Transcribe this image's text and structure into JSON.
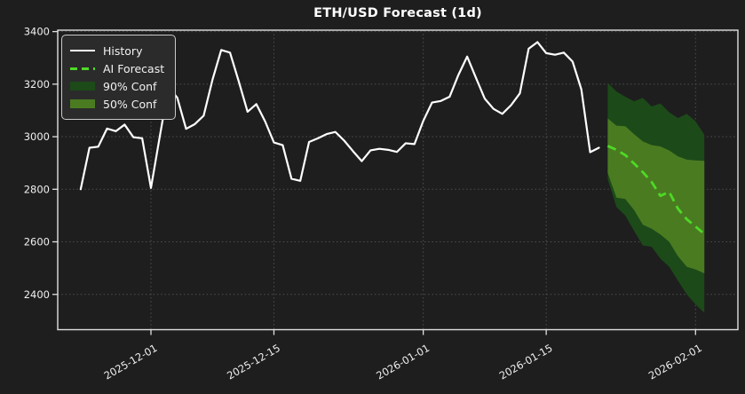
{
  "colors": {
    "background": "#1e1e1e",
    "text": "#f0f0f0",
    "grid": "#4f4f4f",
    "spine": "#e0e0e0",
    "history": "#ffffff",
    "forecast": "#4ed926",
    "band90": "#1c4a19",
    "band50": "#4a7b21",
    "legend_bg": "#2b2b2b",
    "legend_border": "#c9c9c9"
  },
  "legend": {
    "items": [
      {
        "label": "History",
        "swatch": "line",
        "color": "#ffffff"
      },
      {
        "label": "AI Forecast",
        "swatch": "dashed",
        "color": "#4ed926"
      },
      {
        "label": "90% Conf",
        "swatch": "patch",
        "color": "#1c4a19"
      },
      {
        "label": "50% Conf",
        "swatch": "patch",
        "color": "#4a7b21"
      }
    ]
  },
  "chart_data": {
    "type": "line",
    "title": "ETH/USD Forecast (1d)",
    "xlabel": "",
    "ylabel": "",
    "grid": true,
    "legend_position": "upper-left",
    "ylim": [
      2262,
      3405
    ],
    "x_ticks": [
      "2025-12-01",
      "2025-12-15",
      "2026-01-01",
      "2026-01-15",
      "2026-02-01"
    ],
    "y_ticks": [
      2400,
      2600,
      2800,
      3000,
      3200,
      3400
    ],
    "series": {
      "history": {
        "name": "History",
        "start_date": "2025-11-23",
        "interval_days": 1,
        "values": [
          2800,
          2958,
          2962,
          3031,
          3021,
          3046,
          2998,
          2994,
          2805,
          3000,
          3190,
          3148,
          3030,
          3048,
          3080,
          3216,
          3330,
          3320,
          3210,
          3095,
          3124,
          3058,
          2978,
          2968,
          2840,
          2832,
          2980,
          2994,
          3010,
          3018,
          2985,
          2945,
          2907,
          2948,
          2954,
          2950,
          2942,
          2975,
          2972,
          3060,
          3130,
          3136,
          3152,
          3235,
          3305,
          3224,
          3145,
          3106,
          3087,
          3120,
          3165,
          3335,
          3360,
          3318,
          3312,
          3320,
          3286,
          3180,
          2941,
          2958
        ]
      },
      "forecast": {
        "name": "AI Forecast",
        "start_date": "2026-01-22",
        "interval_days": 1,
        "values": [
          2965,
          2950,
          2930,
          2898,
          2865,
          2828,
          2775,
          2790,
          2726,
          2686,
          2658,
          2630
        ]
      },
      "conf90": {
        "name": "90% Conf",
        "start_date": "2026-01-22",
        "interval_days": 1,
        "upper": [
          3205,
          3172,
          3152,
          3135,
          3148,
          3115,
          3127,
          3093,
          3071,
          3087,
          3059,
          3008
        ],
        "lower": [
          2838,
          2732,
          2700,
          2642,
          2586,
          2581,
          2536,
          2505,
          2452,
          2400,
          2362,
          2330
        ]
      },
      "conf50": {
        "name": "50% Conf",
        "start_date": "2026-01-22",
        "interval_days": 1,
        "upper": [
          3070,
          3042,
          3040,
          3010,
          2982,
          2968,
          2963,
          2948,
          2925,
          2913,
          2910,
          2908
        ],
        "lower": [
          2862,
          2768,
          2763,
          2721,
          2665,
          2650,
          2628,
          2600,
          2545,
          2505,
          2495,
          2480
        ]
      }
    }
  }
}
